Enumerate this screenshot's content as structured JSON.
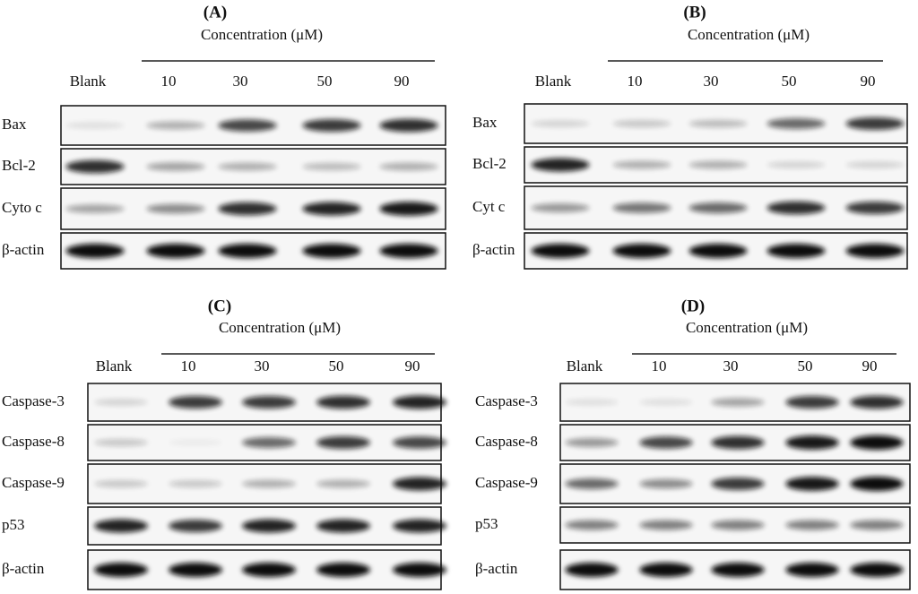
{
  "panels": [
    {
      "label": "(A)",
      "concentration_title": "Concentration (μM)",
      "lanes": [
        "Blank",
        "10",
        "30",
        "50",
        "90"
      ],
      "rows": [
        "Bax",
        "Bcl-2",
        "Cyto c",
        "β-actin"
      ]
    },
    {
      "label": "(B)",
      "concentration_title": "Concentration (μM)",
      "lanes": [
        "Blank",
        "10",
        "30",
        "50",
        "90"
      ],
      "rows": [
        "Bax",
        "Bcl-2",
        "Cyt c",
        "β-actin"
      ]
    },
    {
      "label": "(C)",
      "concentration_title": "Concentration (μM)",
      "lanes": [
        "Blank",
        "10",
        "30",
        "50",
        "90"
      ],
      "rows": [
        "Caspase-3",
        "Caspase-8",
        "Caspase-9",
        "p53",
        "β-actin"
      ]
    },
    {
      "label": "(D)",
      "concentration_title": "Concentration (μM)",
      "lanes": [
        "Blank",
        "10",
        "30",
        "50",
        "90"
      ],
      "rows": [
        "Caspase-3",
        "Caspase-8",
        "Caspase-9",
        "p53",
        "β-actin"
      ]
    }
  ]
}
